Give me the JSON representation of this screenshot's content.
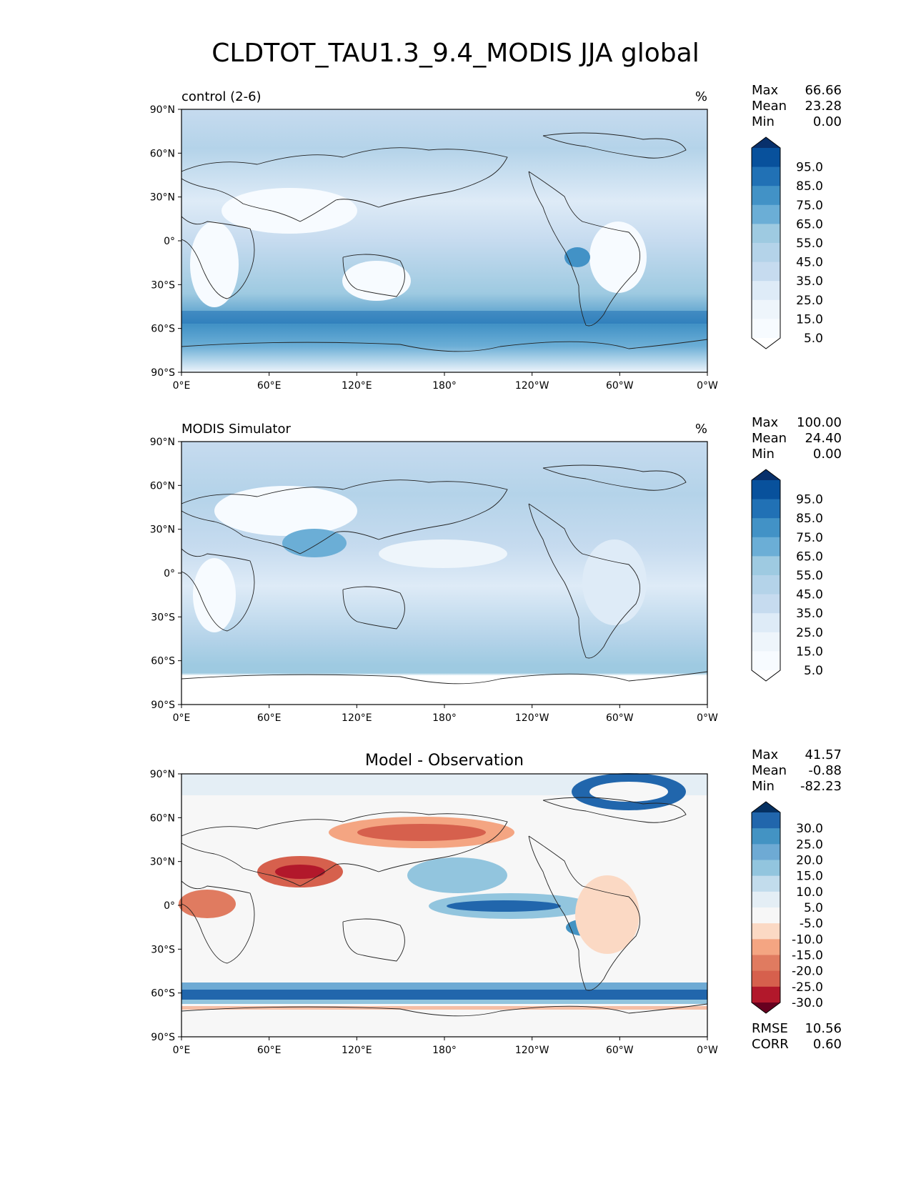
{
  "title": "CLDTOT_TAU1.3_9.4_MODIS JJA global",
  "lon_ticks": [
    "0°E",
    "60°E",
    "120°E",
    "180°",
    "120°W",
    "60°W",
    "0°W"
  ],
  "lat_ticks": [
    "90°N",
    "60°N",
    "30°N",
    "0°",
    "30°S",
    "60°S",
    "90°S"
  ],
  "panels": [
    {
      "title": "control (2-6)",
      "title_position": "left",
      "units": "%",
      "stats": [
        {
          "label": "Max",
          "value": "66.66"
        },
        {
          "label": "Mean",
          "value": "23.28"
        },
        {
          "label": "Min",
          "value": "0.00"
        }
      ],
      "colorbar": {
        "labels": [
          "95.0",
          "85.0",
          "75.0",
          "65.0",
          "55.0",
          "45.0",
          "35.0",
          "25.0",
          "15.0",
          "5.0"
        ],
        "colors": [
          "#08306b",
          "#08519c",
          "#2171b5",
          "#4292c6",
          "#6baed6",
          "#9ecae1",
          "#b4d3e9",
          "#c6dbef",
          "#deebf7",
          "#eef5fb",
          "#f7fbff",
          "#ffffff"
        ]
      }
    },
    {
      "title": "MODIS Simulator",
      "title_position": "left",
      "units": "%",
      "stats": [
        {
          "label": "Max",
          "value": "100.00"
        },
        {
          "label": "Mean",
          "value": "24.40"
        },
        {
          "label": "Min",
          "value": "0.00"
        }
      ],
      "colorbar": {
        "labels": [
          "95.0",
          "85.0",
          "75.0",
          "65.0",
          "55.0",
          "45.0",
          "35.0",
          "25.0",
          "15.0",
          "5.0"
        ],
        "colors": [
          "#08306b",
          "#08519c",
          "#2171b5",
          "#4292c6",
          "#6baed6",
          "#9ecae1",
          "#b4d3e9",
          "#c6dbef",
          "#deebf7",
          "#eef5fb",
          "#f7fbff",
          "#ffffff"
        ]
      }
    },
    {
      "title": "Model - Observation",
      "title_position": "center",
      "units": "",
      "stats": [
        {
          "label": "Max",
          "value": "41.57"
        },
        {
          "label": "Mean",
          "value": "-0.88"
        },
        {
          "label": "Min",
          "value": "-82.23"
        }
      ],
      "colorbar": {
        "labels": [
          "30.0",
          "25.0",
          "20.0",
          "15.0",
          "10.0",
          "5.0",
          "-5.0",
          "-10.0",
          "-15.0",
          "-20.0",
          "-25.0",
          "-30.0"
        ],
        "colors": [
          "#053061",
          "#2166ac",
          "#4393c3",
          "#6eaad4",
          "#92c5de",
          "#c2dcec",
          "#e4eef5",
          "#f7f7f7",
          "#fbd9c4",
          "#f4a582",
          "#e07b60",
          "#d6604d",
          "#b2182b",
          "#67001f"
        ]
      },
      "metrics": [
        {
          "label": "RMSE",
          "value": "10.56"
        },
        {
          "label": "CORR",
          "value": "0.60"
        }
      ]
    }
  ]
}
